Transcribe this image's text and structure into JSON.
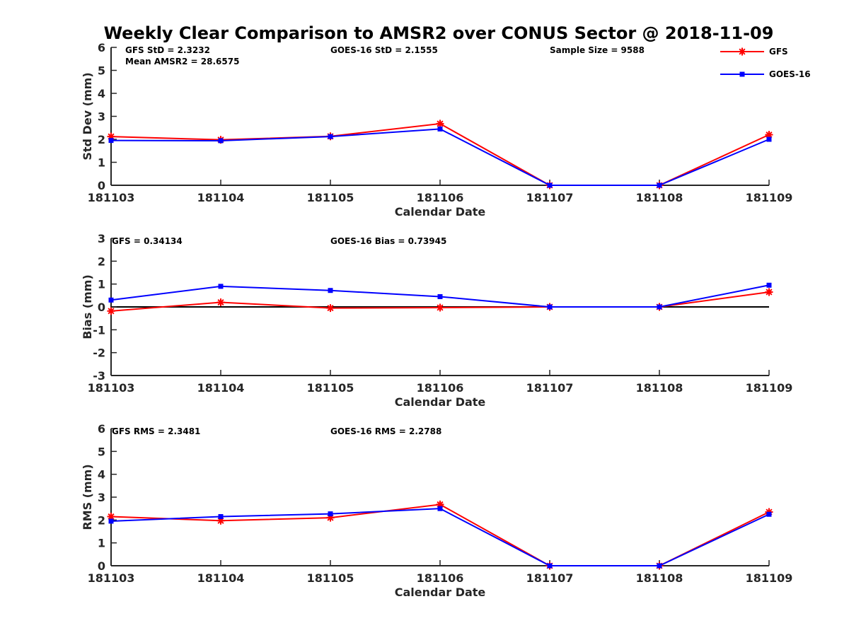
{
  "figure_title": "Weekly Clear Comparison to AMSR2 over CONUS Sector @ 2018-11-09",
  "legend": {
    "position": "top-right",
    "entries": [
      {
        "label": "GFS",
        "color": "#ff0000",
        "marker": "asterisk"
      },
      {
        "label": "GOES-16",
        "color": "#0000ff",
        "marker": "square"
      }
    ]
  },
  "chart_data": [
    {
      "type": "line",
      "title": "",
      "xlabel": "Calendar Date",
      "ylabel": "Std Dev (mm)",
      "ylim": [
        0,
        6
      ],
      "yticks": [
        "0",
        "1",
        "2",
        "3",
        "4",
        "5",
        "6"
      ],
      "categories": [
        "181103",
        "181104",
        "181105",
        "181106",
        "181107",
        "181108",
        "181109"
      ],
      "series": [
        {
          "name": "GFS",
          "color": "#ff0000",
          "marker": "asterisk",
          "values": [
            2.12,
            1.98,
            2.13,
            2.68,
            0.0,
            0.0,
            2.2
          ]
        },
        {
          "name": "GOES-16",
          "color": "#0000ff",
          "marker": "square",
          "values": [
            1.95,
            1.94,
            2.12,
            2.45,
            0.0,
            0.0,
            2.0
          ]
        }
      ],
      "zero_line": false,
      "annotations": [
        "GFS StD = 2.3232",
        "Mean AMSR2 = 28.6575",
        "GOES-16 StD = 2.1555",
        "Sample Size = 9588"
      ]
    },
    {
      "type": "line",
      "title": "",
      "xlabel": "Calendar Date",
      "ylabel": "Bias (mm)",
      "ylim": [
        -3,
        3
      ],
      "yticks": [
        "-3",
        "-2",
        "-1",
        "0",
        "1",
        "2",
        "3"
      ],
      "categories": [
        "181103",
        "181104",
        "181105",
        "181106",
        "181107",
        "181108",
        "181109"
      ],
      "series": [
        {
          "name": "GFS",
          "color": "#ff0000",
          "marker": "asterisk",
          "values": [
            -0.18,
            0.2,
            -0.05,
            -0.03,
            0.0,
            0.0,
            0.65
          ]
        },
        {
          "name": "GOES-16",
          "color": "#0000ff",
          "marker": "square",
          "values": [
            0.3,
            0.9,
            0.72,
            0.45,
            0.0,
            0.0,
            0.95
          ]
        }
      ],
      "zero_line": true,
      "annotations": [
        "GFS = 0.34134",
        "GOES-16 Bias  = 0.73945"
      ]
    },
    {
      "type": "line",
      "title": "",
      "xlabel": "Calendar Date",
      "ylabel": "RMS (mm)",
      "ylim": [
        0,
        6
      ],
      "yticks": [
        "0",
        "1",
        "2",
        "3",
        "4",
        "5",
        "6"
      ],
      "categories": [
        "181103",
        "181104",
        "181105",
        "181106",
        "181107",
        "181108",
        "181109"
      ],
      "series": [
        {
          "name": "GFS",
          "color": "#ff0000",
          "marker": "asterisk",
          "values": [
            2.15,
            1.97,
            2.1,
            2.68,
            0.0,
            0.0,
            2.35
          ]
        },
        {
          "name": "GOES-16",
          "color": "#0000ff",
          "marker": "square",
          "values": [
            1.95,
            2.15,
            2.27,
            2.5,
            0.0,
            0.0,
            2.25
          ]
        }
      ],
      "zero_line": false,
      "annotations": [
        "GFS RMS = 2.3481",
        "GOES-16 RMS = 2.2788"
      ]
    }
  ]
}
